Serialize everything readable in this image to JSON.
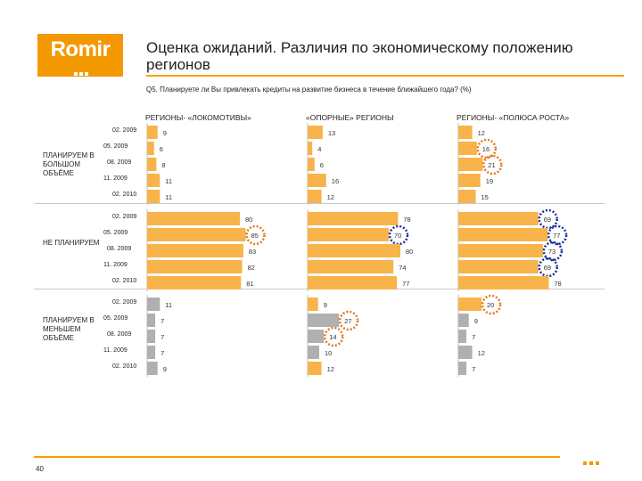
{
  "logo": {
    "text": "Romir"
  },
  "header": {
    "title": "Оценка ожиданий. Различия по экономическому положению регионов",
    "question": "Q5. Планируете ли Вы привлекать кредиты на развитие бизнеса в течение ближайшего года? (%)"
  },
  "footer": {
    "page": "40"
  },
  "colors": {
    "accent": "#f39800",
    "bar": "#f8b34a",
    "bar_gray": "#b0b0b0",
    "ring_blue": "#1a2fa0",
    "ring_orange": "#e8771a"
  },
  "chart_data": {
    "type": "bar",
    "columns": [
      "РЕГИОНЫ- «ЛОКОМОТИВЫ»",
      "«ОПОРНЫЕ» РЕГИОНЫ",
      "РЕГИОНЫ- «ПОЛЮСА РОСТА»"
    ],
    "groups": [
      {
        "label": "ПЛАНИРУЕМ В БОЛЬШОМ ОБЪЁМЕ",
        "dates": [
          "02. 2009",
          "05. 2009",
          "08. 2009",
          "11. 2009",
          "02. 2010"
        ],
        "values": [
          [
            9,
            6,
            8,
            11,
            11
          ],
          [
            13,
            4,
            6,
            16,
            12
          ],
          [
            12,
            16,
            21,
            19,
            15
          ]
        ],
        "highlight": [
          [
            null,
            null,
            null,
            null,
            null
          ],
          [
            null,
            null,
            null,
            null,
            null
          ],
          [
            null,
            "orange",
            "orange",
            null,
            null
          ]
        ]
      },
      {
        "label": "НЕ ПЛАНИРУЕМ",
        "dates": [
          "02. 2009",
          "05. 2009",
          "08. 2009",
          "11. 2009",
          "02. 2010"
        ],
        "values": [
          [
            80,
            85,
            83,
            82,
            81
          ],
          [
            78,
            70,
            80,
            74,
            77
          ],
          [
            69,
            77,
            73,
            69,
            78
          ]
        ],
        "highlight": [
          [
            null,
            "orange",
            null,
            null,
            null
          ],
          [
            null,
            "blue",
            null,
            null,
            null
          ],
          [
            "blue",
            "blue",
            "blue",
            "blue",
            null
          ]
        ]
      },
      {
        "label": "ПЛАНИРУЕМ В МЕНЬШЕМ ОБЪЁМЕ",
        "dates": [
          "02. 2009",
          "05. 2009",
          "08. 2009",
          "11. 2009",
          "02. 2010"
        ],
        "values": [
          [
            11,
            7,
            7,
            7,
            9
          ],
          [
            9,
            27,
            14,
            10,
            12
          ],
          [
            20,
            9,
            7,
            12,
            7
          ]
        ],
        "highlight": [
          [
            null,
            null,
            null,
            null,
            null
          ],
          [
            null,
            "orange",
            "orange",
            null,
            null
          ],
          [
            "orange",
            null,
            null,
            null,
            null
          ]
        ]
      }
    ]
  }
}
